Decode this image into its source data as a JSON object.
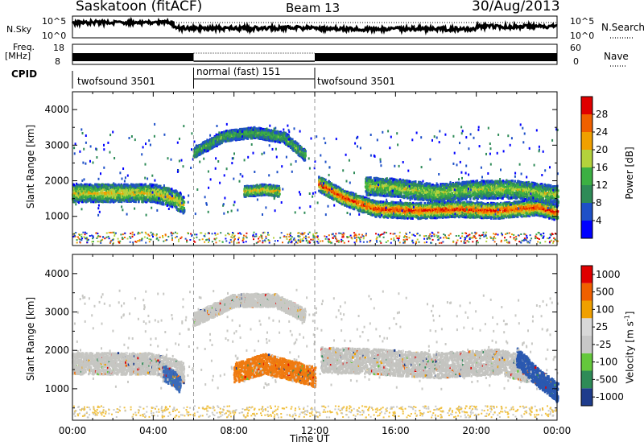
{
  "header": {
    "title": "Saskatoon (fitACF)",
    "beam": "Beam 13",
    "date": "30/Aug/2013"
  },
  "top_panels": {
    "nsky_label": "N.Sky",
    "nsky_ticks": [
      "10^5",
      "10^0"
    ],
    "nsearch_label": "N.Search",
    "nsearch_ticks": [
      "10^5",
      "10^0"
    ],
    "freq_label": "Freq.",
    "freq_unit": "[MHz]",
    "freq_ticks": [
      "18",
      "8"
    ],
    "nave_label": "Nave",
    "nave_ticks": [
      "60",
      "0"
    ],
    "cpid_label": "CPID",
    "cpid_segments": [
      {
        "label": "twofsound 3501",
        "start": 0,
        "end": 6
      },
      {
        "label": "normal (fast) 151",
        "start": 6,
        "end": 12
      },
      {
        "label": "twofsound 3501",
        "start": 12,
        "end": 24
      }
    ]
  },
  "chart_data": [
    {
      "type": "heatmap",
      "panel": "power",
      "ylabel": "Slant Range [km]",
      "ylim": [
        180,
        4500
      ],
      "yticks": [
        1000,
        2000,
        3000,
        4000
      ],
      "xlim": [
        0,
        24
      ],
      "xticks": [
        "00:00",
        "04:00",
        "08:00",
        "12:00",
        "16:00",
        "20:00",
        "00:00"
      ],
      "colorbar": {
        "label": "Power [dB]",
        "ticks": [
          "4",
          "8",
          "12",
          "16",
          "20",
          "24",
          "28"
        ],
        "colors": [
          "#0000ff",
          "#1e50c8",
          "#2e8b57",
          "#3cb043",
          "#b4d23c",
          "#f0a000",
          "#f06000",
          "#e00000"
        ]
      },
      "bands": [
        {
          "t": [
            0,
            2,
            4,
            5,
            5.5
          ],
          "r": [
            1650,
            1650,
            1650,
            1500,
            1300
          ],
          "w": 250,
          "level": 0.55
        },
        {
          "t": [
            8.5,
            9.5,
            10.2
          ],
          "r": [
            1700,
            1750,
            1700
          ],
          "w": 150,
          "level": 0.55
        },
        {
          "t": [
            12.2,
            13.5,
            15,
            17,
            19,
            21,
            23,
            24
          ],
          "r": [
            1900,
            1500,
            1200,
            1150,
            1200,
            1150,
            1250,
            1100
          ],
          "w": 220,
          "level": 0.85
        },
        {
          "t": [
            14.5,
            16,
            18,
            20,
            22,
            24
          ],
          "r": [
            1850,
            1800,
            1650,
            1750,
            1750,
            1600
          ],
          "w": 250,
          "level": 0.45
        },
        {
          "t": [
            6,
            7.5,
            9,
            10.5,
            11.5
          ],
          "r": [
            2800,
            3250,
            3350,
            3200,
            2700
          ],
          "w": 150,
          "level": 0.3
        }
      ]
    },
    {
      "type": "heatmap",
      "panel": "velocity",
      "ylabel": "Slant Range [km]",
      "ylim": [
        180,
        4500
      ],
      "yticks": [
        1000,
        2000,
        3000,
        4000
      ],
      "xlim": [
        0,
        24
      ],
      "xticks": [
        "00:00",
        "04:00",
        "08:00",
        "12:00",
        "16:00",
        "20:00",
        "00:00"
      ],
      "xlabel": "Time UT",
      "colorbar": {
        "label": "Velocity [m s^-1]",
        "ticks": [
          "1000",
          "500",
          "100",
          "25",
          "-25",
          "-100",
          "-500",
          "-1000"
        ],
        "colors": [
          "#1e3c8c",
          "#2e8b57",
          "#64c83c",
          "#c8c8c8",
          "#d8d8d8",
          "#f0a000",
          "#f06000",
          "#e00000"
        ]
      },
      "bands": [
        {
          "t": [
            0,
            2,
            4,
            5.5
          ],
          "r": [
            1650,
            1650,
            1650,
            1400
          ],
          "w": 280,
          "color": "#c6c6c2"
        },
        {
          "t": [
            12.3,
            15,
            18,
            21,
            22.5
          ],
          "r": [
            1750,
            1700,
            1600,
            1700,
            1500
          ],
          "w": 330,
          "color": "#c4c4c0"
        },
        {
          "t": [
            6,
            8,
            10,
            11.5
          ],
          "r": [
            2800,
            3300,
            3300,
            2900
          ],
          "w": 170,
          "color": "#c8c8c4"
        },
        {
          "t": [
            8,
            9.5,
            11,
            12
          ],
          "r": [
            1400,
            1650,
            1450,
            1300
          ],
          "w": 260,
          "color": "#ef7a10"
        },
        {
          "t": [
            22,
            23,
            24
          ],
          "r": [
            1800,
            1300,
            900
          ],
          "w": 250,
          "color": "#2a58b0"
        },
        {
          "t": [
            4.5,
            5,
            5.3
          ],
          "r": [
            1400,
            1250,
            1100
          ],
          "w": 200,
          "color": "#3a6ab8"
        }
      ]
    }
  ]
}
